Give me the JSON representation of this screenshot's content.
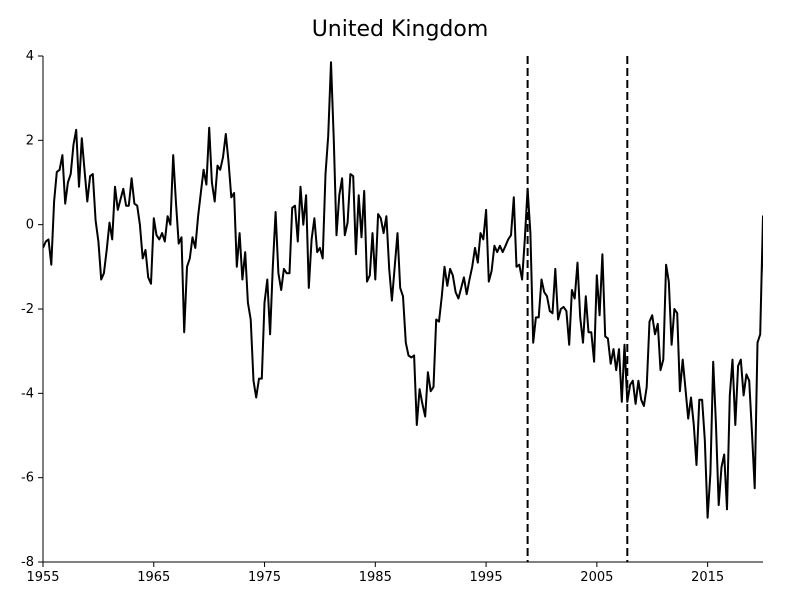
{
  "chart_data": {
    "type": "line",
    "title": "United Kingdom",
    "xlabel": "",
    "ylabel": "",
    "xlim": [
      1955,
      2020
    ],
    "ylim": [
      -8,
      4
    ],
    "x_ticks": [
      1955,
      1965,
      1975,
      1985,
      1995,
      2005,
      2015
    ],
    "y_ticks": [
      4,
      2,
      0,
      -2,
      -4,
      -6,
      -8
    ],
    "grid": false,
    "legend": "none",
    "vertical_lines": [
      1998.75,
      2007.75
    ],
    "series": [
      {
        "values": [
          [
            1955.0,
            -0.55
          ],
          [
            1955.25,
            -0.4
          ],
          [
            1955.5,
            -0.35
          ],
          [
            1955.75,
            -0.95
          ],
          [
            1956.0,
            0.55
          ],
          [
            1956.25,
            1.25
          ],
          [
            1956.5,
            1.3
          ],
          [
            1956.75,
            1.65
          ],
          [
            1957.0,
            0.5
          ],
          [
            1957.25,
            1.0
          ],
          [
            1957.5,
            1.2
          ],
          [
            1957.75,
            1.9
          ],
          [
            1958.0,
            2.25
          ],
          [
            1958.25,
            0.9
          ],
          [
            1958.5,
            2.05
          ],
          [
            1958.75,
            1.3
          ],
          [
            1959.0,
            0.55
          ],
          [
            1959.25,
            1.15
          ],
          [
            1959.5,
            1.2
          ],
          [
            1959.75,
            0.1
          ],
          [
            1960.0,
            -0.4
          ],
          [
            1960.25,
            -1.3
          ],
          [
            1960.5,
            -1.15
          ],
          [
            1960.75,
            -0.6
          ],
          [
            1961.0,
            0.05
          ],
          [
            1961.25,
            -0.35
          ],
          [
            1961.5,
            0.9
          ],
          [
            1961.75,
            0.35
          ],
          [
            1962.0,
            0.6
          ],
          [
            1962.25,
            0.85
          ],
          [
            1962.5,
            0.45
          ],
          [
            1962.75,
            0.45
          ],
          [
            1963.0,
            1.1
          ],
          [
            1963.25,
            0.5
          ],
          [
            1963.5,
            0.45
          ],
          [
            1963.75,
            0.0
          ],
          [
            1964.0,
            -0.8
          ],
          [
            1964.25,
            -0.6
          ],
          [
            1964.5,
            -1.25
          ],
          [
            1964.75,
            -1.4
          ],
          [
            1965.0,
            0.15
          ],
          [
            1965.25,
            -0.25
          ],
          [
            1965.5,
            -0.35
          ],
          [
            1965.75,
            -0.2
          ],
          [
            1966.0,
            -0.4
          ],
          [
            1966.25,
            0.2
          ],
          [
            1966.5,
            0.0
          ],
          [
            1966.75,
            1.65
          ],
          [
            1967.0,
            0.55
          ],
          [
            1967.25,
            -0.45
          ],
          [
            1967.5,
            -0.3
          ],
          [
            1967.75,
            -2.55
          ],
          [
            1968.0,
            -1.0
          ],
          [
            1968.25,
            -0.8
          ],
          [
            1968.5,
            -0.3
          ],
          [
            1968.75,
            -0.55
          ],
          [
            1969.0,
            0.2
          ],
          [
            1969.25,
            0.75
          ],
          [
            1969.5,
            1.3
          ],
          [
            1969.75,
            0.95
          ],
          [
            1970.0,
            2.3
          ],
          [
            1970.25,
            1.0
          ],
          [
            1970.5,
            0.55
          ],
          [
            1970.75,
            1.4
          ],
          [
            1971.0,
            1.3
          ],
          [
            1971.25,
            1.6
          ],
          [
            1971.5,
            2.15
          ],
          [
            1971.75,
            1.5
          ],
          [
            1972.0,
            0.65
          ],
          [
            1972.25,
            0.75
          ],
          [
            1972.5,
            -1.0
          ],
          [
            1972.75,
            -0.2
          ],
          [
            1973.0,
            -1.3
          ],
          [
            1973.25,
            -0.65
          ],
          [
            1973.5,
            -1.85
          ],
          [
            1973.75,
            -2.25
          ],
          [
            1974.0,
            -3.7
          ],
          [
            1974.25,
            -4.1
          ],
          [
            1974.5,
            -3.65
          ],
          [
            1974.75,
            -3.65
          ],
          [
            1975.0,
            -1.85
          ],
          [
            1975.25,
            -1.3
          ],
          [
            1975.5,
            -2.6
          ],
          [
            1975.75,
            -1.0
          ],
          [
            1976.0,
            0.3
          ],
          [
            1976.25,
            -1.15
          ],
          [
            1976.5,
            -1.55
          ],
          [
            1976.75,
            -1.05
          ],
          [
            1977.0,
            -1.15
          ],
          [
            1977.25,
            -1.15
          ],
          [
            1977.5,
            0.4
          ],
          [
            1977.75,
            0.45
          ],
          [
            1978.0,
            -0.4
          ],
          [
            1978.25,
            0.9
          ],
          [
            1978.5,
            0.0
          ],
          [
            1978.75,
            0.7
          ],
          [
            1979.0,
            -1.5
          ],
          [
            1979.25,
            -0.35
          ],
          [
            1979.5,
            0.15
          ],
          [
            1979.75,
            -0.65
          ],
          [
            1980.0,
            -0.55
          ],
          [
            1980.25,
            -0.8
          ],
          [
            1980.5,
            1.2
          ],
          [
            1980.75,
            2.1
          ],
          [
            1981.0,
            3.85
          ],
          [
            1981.25,
            2.0
          ],
          [
            1981.5,
            -0.25
          ],
          [
            1981.75,
            0.7
          ],
          [
            1982.0,
            1.1
          ],
          [
            1982.25,
            -0.25
          ],
          [
            1982.5,
            0.05
          ],
          [
            1982.75,
            1.2
          ],
          [
            1983.0,
            1.15
          ],
          [
            1983.25,
            -0.7
          ],
          [
            1983.5,
            0.7
          ],
          [
            1983.75,
            -0.3
          ],
          [
            1984.0,
            0.8
          ],
          [
            1984.25,
            -1.35
          ],
          [
            1984.5,
            -1.2
          ],
          [
            1984.75,
            -0.2
          ],
          [
            1985.0,
            -1.3
          ],
          [
            1985.25,
            0.25
          ],
          [
            1985.5,
            0.15
          ],
          [
            1985.75,
            -0.2
          ],
          [
            1986.0,
            0.2
          ],
          [
            1986.25,
            -1.05
          ],
          [
            1986.5,
            -1.8
          ],
          [
            1986.75,
            -1.0
          ],
          [
            1987.0,
            -0.2
          ],
          [
            1987.25,
            -1.5
          ],
          [
            1987.5,
            -1.7
          ],
          [
            1987.75,
            -2.8
          ],
          [
            1988.0,
            -3.1
          ],
          [
            1988.25,
            -3.15
          ],
          [
            1988.5,
            -3.1
          ],
          [
            1988.75,
            -4.75
          ],
          [
            1989.0,
            -3.9
          ],
          [
            1989.25,
            -4.25
          ],
          [
            1989.5,
            -4.55
          ],
          [
            1989.75,
            -3.5
          ],
          [
            1990.0,
            -3.95
          ],
          [
            1990.25,
            -3.85
          ],
          [
            1990.5,
            -2.25
          ],
          [
            1990.75,
            -2.3
          ],
          [
            1991.0,
            -1.7
          ],
          [
            1991.25,
            -1.0
          ],
          [
            1991.5,
            -1.45
          ],
          [
            1991.75,
            -1.05
          ],
          [
            1992.0,
            -1.2
          ],
          [
            1992.25,
            -1.6
          ],
          [
            1992.5,
            -1.75
          ],
          [
            1992.75,
            -1.5
          ],
          [
            1993.0,
            -1.25
          ],
          [
            1993.25,
            -1.65
          ],
          [
            1993.5,
            -1.3
          ],
          [
            1993.75,
            -1.0
          ],
          [
            1994.0,
            -0.55
          ],
          [
            1994.25,
            -0.9
          ],
          [
            1994.5,
            -0.2
          ],
          [
            1994.75,
            -0.35
          ],
          [
            1995.0,
            0.35
          ],
          [
            1995.25,
            -1.35
          ],
          [
            1995.5,
            -1.1
          ],
          [
            1995.75,
            -0.5
          ],
          [
            1996.0,
            -0.65
          ],
          [
            1996.25,
            -0.5
          ],
          [
            1996.5,
            -0.65
          ],
          [
            1996.75,
            -0.5
          ],
          [
            1997.0,
            -0.35
          ],
          [
            1997.25,
            -0.25
          ],
          [
            1997.5,
            0.65
          ],
          [
            1997.75,
            -1.0
          ],
          [
            1998.0,
            -0.95
          ],
          [
            1998.25,
            -1.3
          ],
          [
            1998.5,
            -0.35
          ],
          [
            1998.75,
            0.85
          ],
          [
            1999.0,
            -0.2
          ],
          [
            1999.25,
            -2.8
          ],
          [
            1999.5,
            -2.2
          ],
          [
            1999.75,
            -2.2
          ],
          [
            2000.0,
            -1.3
          ],
          [
            2000.25,
            -1.6
          ],
          [
            2000.5,
            -1.7
          ],
          [
            2000.75,
            -2.05
          ],
          [
            2001.0,
            -2.1
          ],
          [
            2001.25,
            -1.05
          ],
          [
            2001.5,
            -2.25
          ],
          [
            2001.75,
            -2.0
          ],
          [
            2002.0,
            -1.95
          ],
          [
            2002.25,
            -2.05
          ],
          [
            2002.5,
            -2.85
          ],
          [
            2002.75,
            -1.55
          ],
          [
            2003.0,
            -1.75
          ],
          [
            2003.25,
            -0.9
          ],
          [
            2003.5,
            -2.2
          ],
          [
            2003.75,
            -2.8
          ],
          [
            2004.0,
            -1.7
          ],
          [
            2004.25,
            -2.55
          ],
          [
            2004.5,
            -2.55
          ],
          [
            2004.75,
            -3.25
          ],
          [
            2005.0,
            -1.2
          ],
          [
            2005.25,
            -2.15
          ],
          [
            2005.5,
            -0.7
          ],
          [
            2005.75,
            -2.65
          ],
          [
            2006.0,
            -2.7
          ],
          [
            2006.25,
            -3.3
          ],
          [
            2006.5,
            -2.95
          ],
          [
            2006.75,
            -3.45
          ],
          [
            2007.0,
            -2.95
          ],
          [
            2007.25,
            -4.2
          ],
          [
            2007.5,
            -2.85
          ],
          [
            2007.75,
            -4.2
          ],
          [
            2008.0,
            -3.8
          ],
          [
            2008.25,
            -3.7
          ],
          [
            2008.5,
            -4.25
          ],
          [
            2008.75,
            -3.7
          ],
          [
            2009.0,
            -4.15
          ],
          [
            2009.25,
            -4.3
          ],
          [
            2009.5,
            -3.85
          ],
          [
            2009.75,
            -2.3
          ],
          [
            2010.0,
            -2.15
          ],
          [
            2010.25,
            -2.6
          ],
          [
            2010.5,
            -2.35
          ],
          [
            2010.75,
            -3.45
          ],
          [
            2011.0,
            -3.2
          ],
          [
            2011.25,
            -0.95
          ],
          [
            2011.5,
            -1.35
          ],
          [
            2011.75,
            -2.85
          ],
          [
            2012.0,
            -2.0
          ],
          [
            2012.25,
            -2.1
          ],
          [
            2012.5,
            -3.95
          ],
          [
            2012.75,
            -3.2
          ],
          [
            2013.0,
            -3.9
          ],
          [
            2013.25,
            -4.6
          ],
          [
            2013.5,
            -4.1
          ],
          [
            2013.75,
            -4.75
          ],
          [
            2014.0,
            -5.7
          ],
          [
            2014.25,
            -4.15
          ],
          [
            2014.5,
            -4.15
          ],
          [
            2014.75,
            -5.1
          ],
          [
            2015.0,
            -6.95
          ],
          [
            2015.25,
            -5.9
          ],
          [
            2015.5,
            -3.25
          ],
          [
            2015.75,
            -4.7
          ],
          [
            2016.0,
            -6.65
          ],
          [
            2016.25,
            -5.75
          ],
          [
            2016.5,
            -5.45
          ],
          [
            2016.75,
            -6.75
          ],
          [
            2017.0,
            -4.05
          ],
          [
            2017.25,
            -3.2
          ],
          [
            2017.5,
            -4.75
          ],
          [
            2017.75,
            -3.35
          ],
          [
            2018.0,
            -3.2
          ],
          [
            2018.25,
            -4.05
          ],
          [
            2018.5,
            -3.55
          ],
          [
            2018.75,
            -3.7
          ],
          [
            2019.0,
            -4.9
          ],
          [
            2019.25,
            -6.25
          ],
          [
            2019.5,
            -2.8
          ],
          [
            2019.75,
            -2.6
          ],
          [
            2020.0,
            0.2
          ],
          [
            2020.15,
            -2.2
          ]
        ]
      }
    ]
  }
}
